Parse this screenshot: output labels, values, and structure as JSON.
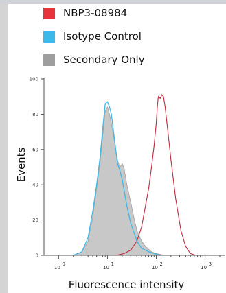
{
  "chart_data": {
    "type": "area",
    "title": "",
    "xlabel": "Fluorescence intensity",
    "ylabel": "Events",
    "x_scale": "log",
    "xlim": [
      0.5,
      2000
    ],
    "ylim": [
      0,
      100
    ],
    "x_ticks": [
      {
        "value": 1,
        "label": "10",
        "exp": "0"
      },
      {
        "value": 10,
        "label": "10",
        "exp": "1"
      },
      {
        "value": 100,
        "label": "10",
        "exp": "2"
      },
      {
        "value": 1000,
        "label": "10",
        "exp": "3"
      },
      {
        "value": 10000,
        "label": "10",
        "exp": "4"
      }
    ],
    "y_ticks": [
      0,
      20,
      40,
      60,
      80,
      100
    ],
    "legend_position": "top-left",
    "series": [
      {
        "name": "NBP3-08984",
        "color": "#e8323c",
        "style": "line",
        "points": [
          [
            15,
            0
          ],
          [
            22,
            1
          ],
          [
            30,
            3
          ],
          [
            40,
            8
          ],
          [
            50,
            16
          ],
          [
            60,
            28
          ],
          [
            70,
            38
          ],
          [
            80,
            50
          ],
          [
            90,
            62
          ],
          [
            100,
            75
          ],
          [
            105,
            84
          ],
          [
            110,
            90
          ],
          [
            120,
            89
          ],
          [
            130,
            91
          ],
          [
            140,
            90
          ],
          [
            150,
            85
          ],
          [
            170,
            72
          ],
          [
            200,
            54
          ],
          [
            250,
            32
          ],
          [
            320,
            14
          ],
          [
            400,
            5
          ],
          [
            500,
            1
          ],
          [
            650,
            0
          ]
        ]
      },
      {
        "name": "Isotype Control",
        "color": "#3cb9e8",
        "style": "line",
        "points": [
          [
            2,
            0
          ],
          [
            3,
            2
          ],
          [
            4,
            10
          ],
          [
            5,
            25
          ],
          [
            6,
            40
          ],
          [
            7,
            55
          ],
          [
            8,
            72
          ],
          [
            9,
            86
          ],
          [
            10,
            87
          ],
          [
            11,
            84
          ],
          [
            12,
            80
          ],
          [
            14,
            65
          ],
          [
            16,
            52
          ],
          [
            18,
            48
          ],
          [
            20,
            43
          ],
          [
            25,
            28
          ],
          [
            30,
            18
          ],
          [
            40,
            8
          ],
          [
            50,
            4
          ],
          [
            70,
            2
          ],
          [
            90,
            1
          ],
          [
            120,
            0
          ]
        ]
      },
      {
        "name": "Secondary Only",
        "color": "#9e9e9e",
        "style": "filled",
        "points": [
          [
            2,
            0
          ],
          [
            3,
            2
          ],
          [
            4,
            8
          ],
          [
            5,
            22
          ],
          [
            6,
            38
          ],
          [
            7,
            52
          ],
          [
            8,
            68
          ],
          [
            9,
            82
          ],
          [
            10,
            84
          ],
          [
            11,
            80
          ],
          [
            12,
            75
          ],
          [
            14,
            64
          ],
          [
            16,
            54
          ],
          [
            18,
            50
          ],
          [
            20,
            52
          ],
          [
            22,
            49
          ],
          [
            25,
            40
          ],
          [
            30,
            30
          ],
          [
            35,
            21
          ],
          [
            40,
            14
          ],
          [
            50,
            8
          ],
          [
            60,
            5
          ],
          [
            80,
            2
          ],
          [
            100,
            1
          ],
          [
            150,
            0
          ]
        ]
      }
    ]
  }
}
